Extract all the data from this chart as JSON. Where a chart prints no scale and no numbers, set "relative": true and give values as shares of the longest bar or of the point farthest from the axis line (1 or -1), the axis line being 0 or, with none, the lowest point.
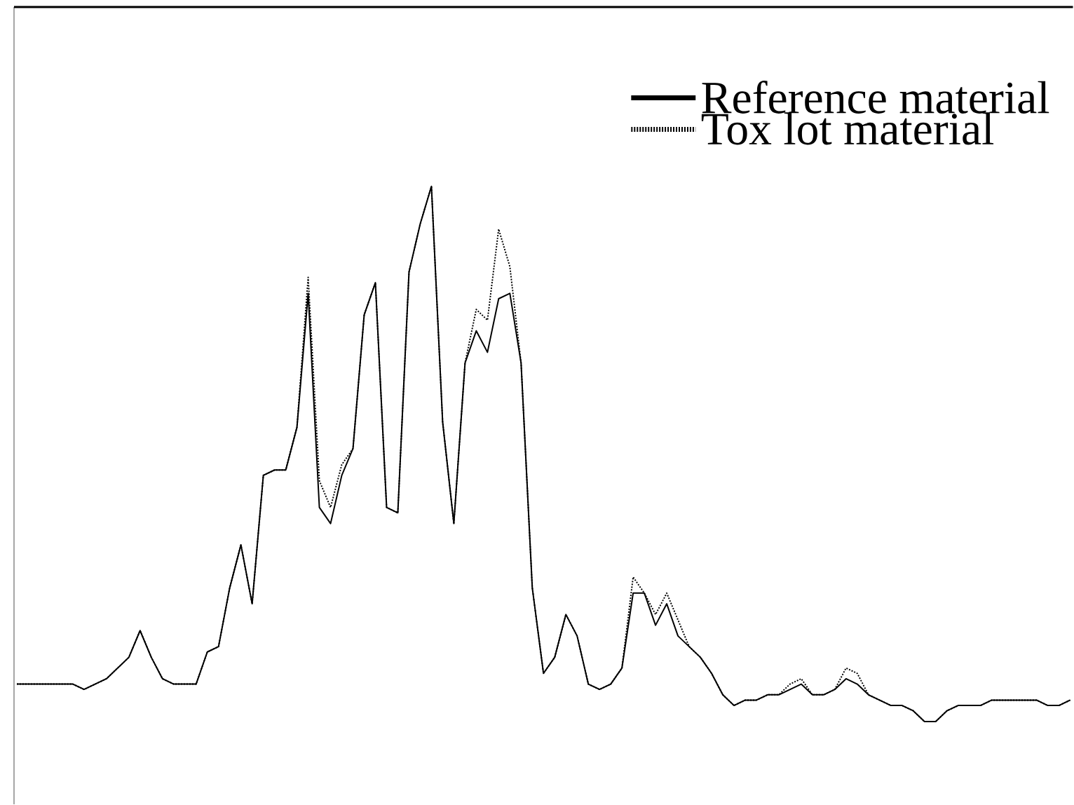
{
  "chart_data": {
    "type": "line",
    "relative": true,
    "legend": "top right",
    "categories": [
      null,
      null,
      null,
      null,
      null,
      null,
      null,
      null,
      null,
      null,
      null,
      null,
      null,
      null,
      null,
      null,
      null,
      null,
      null,
      null,
      null,
      null,
      null,
      null,
      null,
      null,
      null,
      null,
      null,
      null,
      null,
      null,
      null,
      null,
      null,
      null,
      null,
      null,
      null,
      null,
      null,
      null,
      null,
      null,
      null,
      null,
      null,
      null,
      null,
      null,
      null,
      null,
      null,
      null,
      null,
      null,
      null,
      null,
      null,
      null,
      null,
      null,
      null,
      null,
      null,
      null,
      null,
      null,
      null,
      null,
      null,
      null,
      null,
      null,
      null,
      null,
      null,
      null,
      null,
      null,
      null,
      null,
      null,
      null,
      null,
      null,
      null,
      null,
      null,
      null,
      null,
      null,
      null,
      null,
      null
    ],
    "series": [
      {
        "name": "Reference material",
        "color": "#000000",
        "line_style": "solid",
        "values": [
          0.07,
          0.07,
          0.07,
          0.07,
          0.07,
          0.07,
          0.06,
          0.07,
          0.08,
          0.1,
          0.12,
          0.17,
          0.12,
          0.08,
          0.07,
          0.07,
          0.07,
          0.13,
          0.14,
          0.25,
          0.33,
          0.22,
          0.46,
          0.47,
          0.47,
          0.55,
          0.8,
          0.4,
          0.37,
          0.46,
          0.51,
          0.76,
          0.82,
          0.4,
          0.39,
          0.84,
          0.93,
          1.0,
          0.56,
          0.37,
          0.67,
          0.73,
          0.69,
          0.79,
          0.8,
          0.67,
          0.25,
          0.09,
          0.12,
          0.2,
          0.16,
          0.07,
          0.06,
          0.07,
          0.1,
          0.24,
          0.24,
          0.18,
          0.22,
          0.16,
          0.14,
          0.12,
          0.09,
          0.05,
          0.03,
          0.04,
          0.04,
          0.05,
          0.05,
          0.06,
          0.07,
          0.05,
          0.05,
          0.06,
          0.08,
          0.07,
          0.05,
          0.04,
          0.03,
          0.03,
          0.02,
          0.0,
          0.0,
          0.02,
          0.03,
          0.03,
          0.03,
          0.04,
          0.04,
          0.04,
          0.04,
          0.04,
          0.03,
          0.03,
          0.04
        ]
      },
      {
        "name": "Tox lot material",
        "color": "#000000",
        "line_style": "dotted",
        "values": [
          0.07,
          0.07,
          0.07,
          0.07,
          0.07,
          0.07,
          0.06,
          0.07,
          0.08,
          0.1,
          0.12,
          0.17,
          0.12,
          0.08,
          0.07,
          0.07,
          0.07,
          0.13,
          0.14,
          0.25,
          0.33,
          0.22,
          0.46,
          0.47,
          0.47,
          0.55,
          0.83,
          0.45,
          0.4,
          0.48,
          0.51,
          0.76,
          0.82,
          0.4,
          0.39,
          0.84,
          0.93,
          1.0,
          0.56,
          0.37,
          0.67,
          0.77,
          0.75,
          0.92,
          0.85,
          0.67,
          0.25,
          0.09,
          0.12,
          0.2,
          0.16,
          0.07,
          0.06,
          0.07,
          0.1,
          0.27,
          0.24,
          0.2,
          0.24,
          0.19,
          0.14,
          0.12,
          0.09,
          0.05,
          0.03,
          0.04,
          0.04,
          0.05,
          0.05,
          0.07,
          0.08,
          0.05,
          0.05,
          0.06,
          0.1,
          0.09,
          0.05,
          0.04,
          0.03,
          0.03,
          0.02,
          0.0,
          0.0,
          0.02,
          0.03,
          0.03,
          0.03,
          0.04,
          0.04,
          0.04,
          0.04,
          0.04,
          0.03,
          0.03,
          0.04
        ]
      }
    ]
  }
}
